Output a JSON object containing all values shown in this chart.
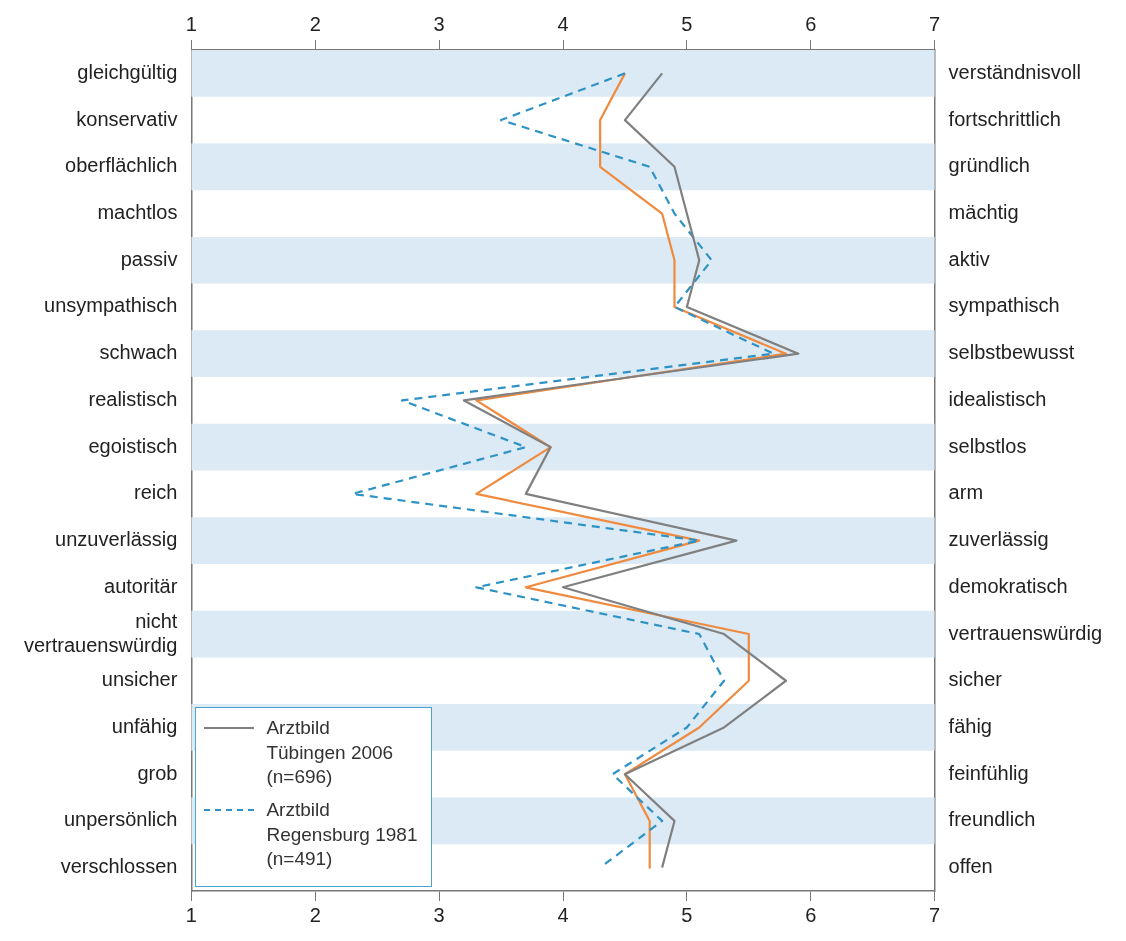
{
  "chart_data": {
    "type": "line",
    "orientation": "horizontal",
    "categories": [
      "gleichgültig",
      "konservativ",
      "oberflächlich",
      "machtlos",
      "passiv",
      "unsympathisch",
      "schwach",
      "realistisch",
      "egoistisch",
      "reich",
      "unzuverlässig",
      "autoritär",
      "nicht\nvertrauenswürdig",
      "unsicher",
      "unfähig",
      "grob",
      "unpersönlich",
      "verschlossen"
    ],
    "y2_categories": [
      "verständnisvoll",
      "fortschrittlich",
      "gründlich",
      "mächtig",
      "aktiv",
      "sympathisch",
      "selbstbewusst",
      "idealistisch",
      "selbstlos",
      "arm",
      "zuverlässig",
      "demokratisch",
      "vertrauenswürdig",
      "sicher",
      "fähig",
      "feinfühlig",
      "freundlich",
      "offen"
    ],
    "series": [
      {
        "name": "Arztbild\nTübingen 2006\n(n=696)",
        "color": "#808080",
        "line_style": "solid",
        "values": [
          4.8,
          4.5,
          4.9,
          5.0,
          5.1,
          5.0,
          5.9,
          3.2,
          3.9,
          3.7,
          5.4,
          4.0,
          5.3,
          5.8,
          5.3,
          4.5,
          4.9,
          4.8
        ]
      },
      {
        "name": "Arztbild\nRegensburg 1981\n(n=491)",
        "color": "#2e93c4",
        "line_style": "dashed",
        "values": [
          4.5,
          3.5,
          4.7,
          4.9,
          5.2,
          4.9,
          5.7,
          2.7,
          3.7,
          2.3,
          5.1,
          3.3,
          5.1,
          5.3,
          5.0,
          4.4,
          4.8,
          4.3
        ]
      },
      {
        "color": "#ef8a3e",
        "line_style": "solid",
        "values": [
          4.5,
          4.3,
          4.3,
          4.8,
          4.9,
          4.9,
          5.8,
          3.3,
          3.9,
          3.3,
          5.1,
          3.7,
          5.5,
          5.5,
          5.1,
          4.5,
          4.7,
          4.7
        ]
      }
    ],
    "xlim": [
      1,
      7
    ],
    "xticks": [
      1,
      2,
      3,
      4,
      5,
      6,
      7
    ],
    "x2lim": [
      1,
      7
    ],
    "x2ticks": [
      1,
      2,
      3,
      4,
      5,
      6,
      7
    ],
    "grid": false,
    "marker": "none",
    "legend": "bottom left"
  }
}
